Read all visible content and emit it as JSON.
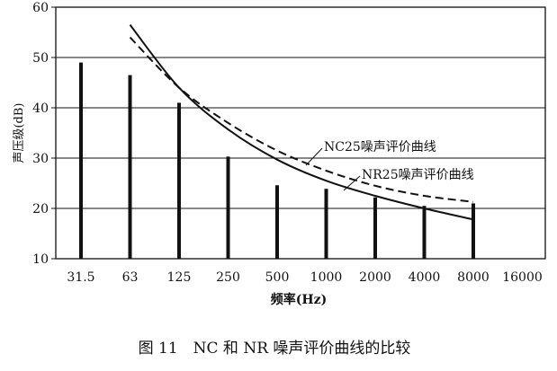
{
  "figure": {
    "caption": "图 11　NC 和 NR 噪声评价曲线的比较"
  },
  "chart_data": {
    "type": "bar",
    "xlabel": "频率(Hz)",
    "ylabel": "声压级(dB)",
    "categories": [
      "31.5",
      "63",
      "125",
      "250",
      "500",
      "1000",
      "2000",
      "4000",
      "8000",
      "16000"
    ],
    "ylim": [
      10,
      60
    ],
    "yticks": [
      10,
      20,
      30,
      40,
      50,
      60
    ],
    "grid": "horizontal",
    "series": [
      {
        "kind": "bar",
        "values": [
          49,
          46.5,
          41,
          30.3,
          24.6,
          23.9,
          22.2,
          20.5,
          21,
          null
        ]
      },
      {
        "kind": "line",
        "style": "dashed",
        "name": "NC25噪声评价曲线",
        "values": [
          null,
          54,
          44,
          37,
          31.5,
          27.5,
          24.5,
          22.5,
          21.3,
          null
        ]
      },
      {
        "kind": "line",
        "style": "solid",
        "name": "NR25噪声评价曲线",
        "values": [
          null,
          56.5,
          44,
          35.7,
          29.7,
          25.5,
          22.5,
          20,
          17.8,
          null
        ]
      }
    ],
    "annotations": [
      "NC25噪声评价曲线",
      "NR25噪声评价曲线"
    ]
  }
}
